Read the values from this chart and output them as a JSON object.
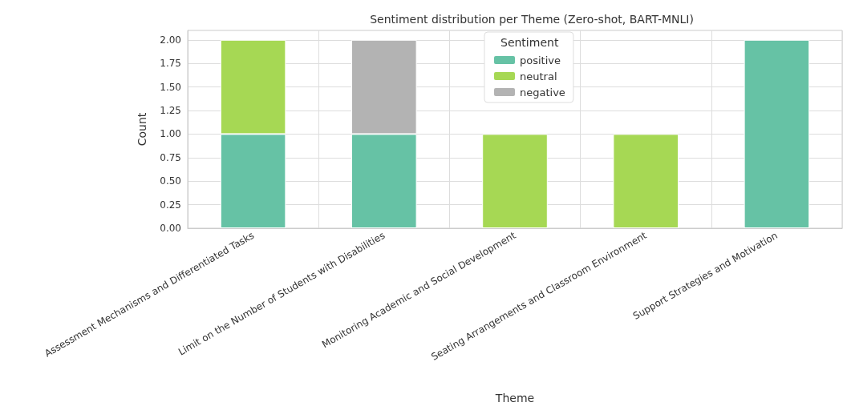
{
  "chart_data": {
    "type": "bar",
    "title": "Sentiment distribution per Theme (Zero-shot, BART-MNLI)",
    "xlabel": "Theme",
    "ylabel": "Count",
    "legend_title": "Sentiment",
    "categories": [
      "Assessment Mechanisms and Differentiated Tasks",
      "Limit on the Number of Students with Disabilities",
      "Monitoring Academic and Social Development",
      "Seating Arrangements and Classroom Environment",
      "Support Strategies and Motivation"
    ],
    "stacked": true,
    "series": [
      {
        "name": "positive",
        "color": "#66c2a5",
        "values": [
          1,
          1,
          0,
          0,
          2
        ]
      },
      {
        "name": "neutral",
        "color": "#a6d854",
        "values": [
          1,
          0,
          1,
          1,
          0
        ]
      },
      {
        "name": "negative",
        "color": "#b3b3b3",
        "values": [
          0,
          1,
          0,
          0,
          0
        ]
      }
    ],
    "ylim": [
      0,
      2.1
    ],
    "yticks": [
      {
        "value": 0,
        "label": "0.00"
      },
      {
        "value": 0.25,
        "label": "0.25"
      },
      {
        "value": 0.5,
        "label": "0.50"
      },
      {
        "value": 0.75,
        "label": "0.75"
      },
      {
        "value": 1,
        "label": "1.00"
      },
      {
        "value": 1.25,
        "label": "1.25"
      },
      {
        "value": 1.5,
        "label": "1.50"
      },
      {
        "value": 1.75,
        "label": "1.75"
      },
      {
        "value": 2,
        "label": "2.00"
      }
    ],
    "grid": true,
    "legend": "top"
  }
}
